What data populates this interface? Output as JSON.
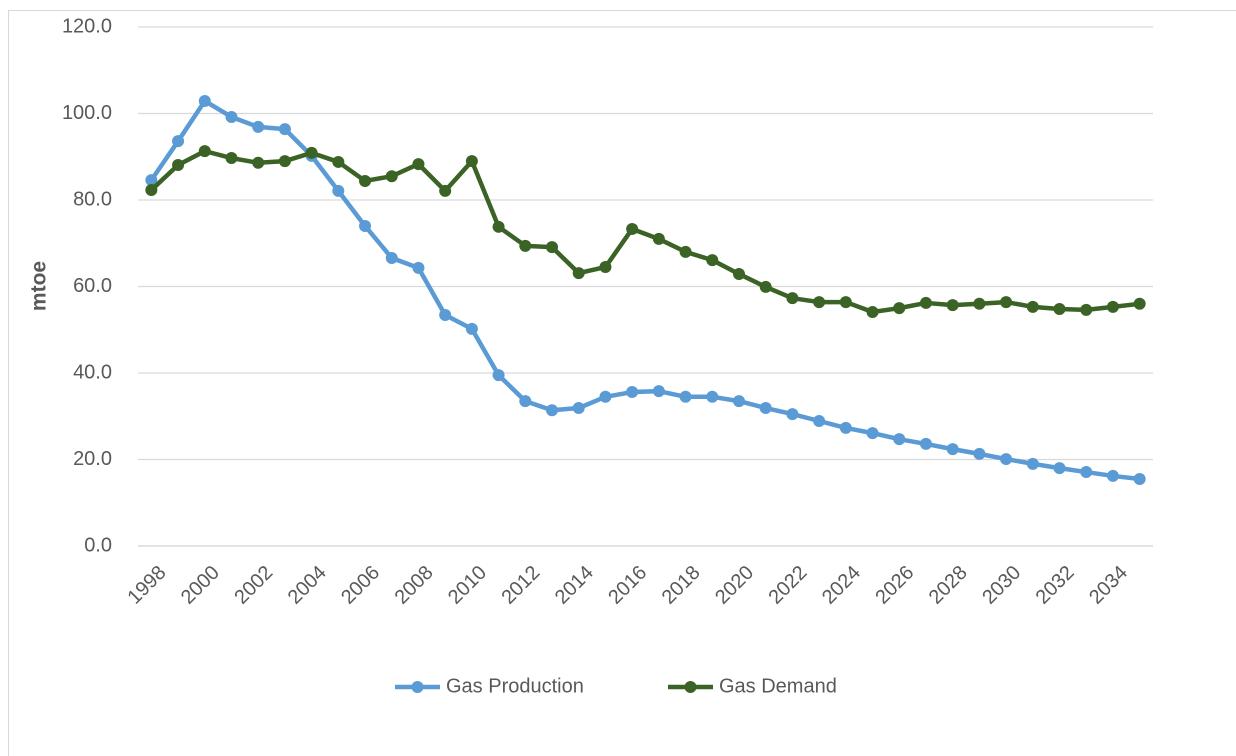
{
  "chart_data": {
    "type": "line",
    "y_label": "mtoe",
    "categories": [
      "1998",
      null,
      "2000",
      null,
      "2002",
      null,
      "2004",
      null,
      "2006",
      null,
      "2008",
      null,
      "2010",
      null,
      "2012",
      null,
      "2014",
      null,
      "2016",
      null,
      "2018",
      null,
      "2020",
      null,
      "2022",
      null,
      "2024",
      null,
      "2026",
      null,
      "2028",
      null,
      "2030",
      null,
      "2032",
      null,
      "2034",
      null
    ],
    "series": [
      {
        "name": "Gas Production",
        "color": "#5b9bd5",
        "values": [
          84.6,
          93.6,
          102.9,
          99.2,
          96.9,
          96.4,
          90.2,
          82.1,
          74.0,
          66.6,
          64.3,
          53.4,
          50.2,
          39.5,
          33.5,
          31.4,
          31.9,
          34.5,
          35.6,
          35.8,
          34.5,
          34.5,
          33.5,
          31.9,
          30.5,
          28.9,
          27.3,
          26.1,
          24.7,
          23.6,
          22.4,
          21.3,
          20.1,
          19.0,
          18.0,
          17.1,
          16.2,
          15.5
        ]
      },
      {
        "name": "Gas Demand",
        "color": "#3b6326",
        "values": [
          82.3,
          88.1,
          91.3,
          89.7,
          88.6,
          89.0,
          90.9,
          88.8,
          84.4,
          85.5,
          88.3,
          82.1,
          89.0,
          73.8,
          69.4,
          69.1,
          63.1,
          64.5,
          73.3,
          71.0,
          68.0,
          66.1,
          62.9,
          59.9,
          57.3,
          56.4,
          56.4,
          54.1,
          55.0,
          56.2,
          55.7,
          56.0,
          56.4,
          55.3,
          54.8,
          54.6,
          55.3,
          56.0
        ]
      }
    ],
    "ylim": [
      0,
      120
    ],
    "yticks": [
      {
        "value": 0,
        "label": "0.0"
      },
      {
        "value": 20,
        "label": "20.0"
      },
      {
        "value": 40,
        "label": "40.0"
      },
      {
        "value": 60,
        "label": "60.0"
      },
      {
        "value": 80,
        "label": "80.0"
      },
      {
        "value": 100,
        "label": "100.0"
      },
      {
        "value": 120,
        "label": "120.0"
      }
    ],
    "grid": true,
    "legend": "bottom"
  }
}
